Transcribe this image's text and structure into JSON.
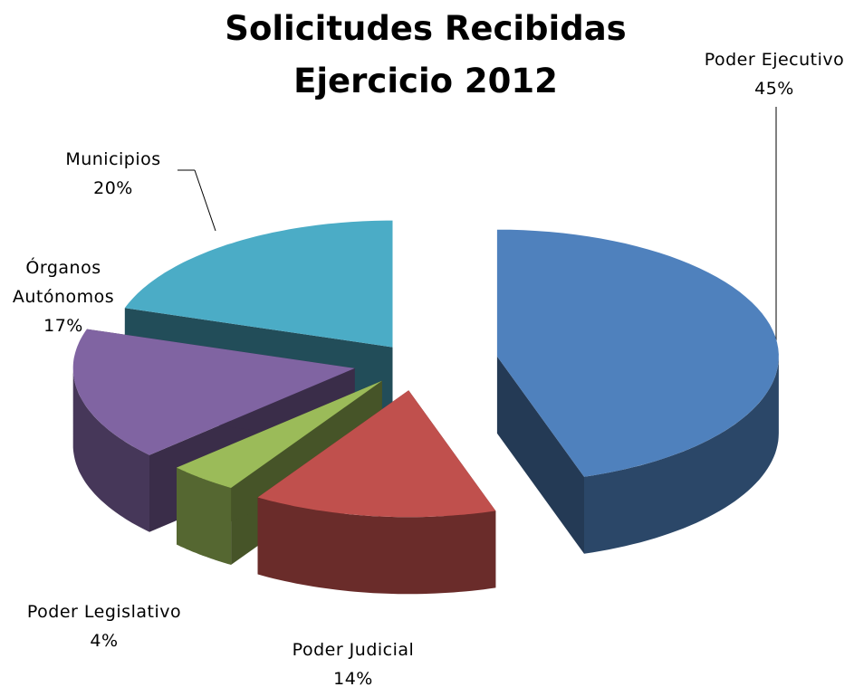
{
  "chart_data": {
    "type": "pie",
    "title": [
      "Solicitudes Recibidas",
      "Ejercicio 2012"
    ],
    "categories": [
      "Poder Ejecutivo",
      "Poder Judicial",
      "Poder Legislativo",
      "Órganos Autónomos",
      "Municipios"
    ],
    "values": [
      45,
      14,
      4,
      17,
      20
    ],
    "value_labels": [
      "45%",
      "14%",
      "4%",
      "17%",
      "20%"
    ],
    "colors": [
      "#4f81bd",
      "#c0504d",
      "#9bbb59",
      "#8064a2",
      "#4bacc6"
    ]
  }
}
